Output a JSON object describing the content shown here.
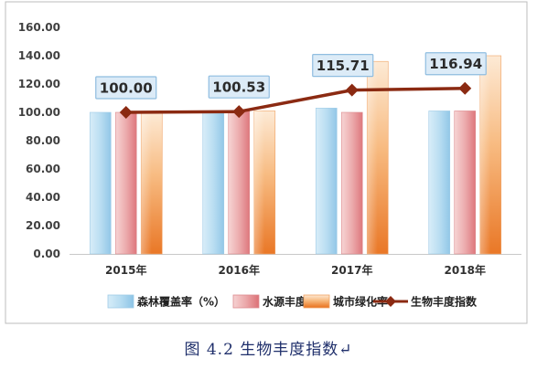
{
  "chart_data": {
    "type": "bar",
    "categories": [
      "2015年",
      "2016年",
      "2017年",
      "2018年"
    ],
    "ylim": [
      0,
      160
    ],
    "yticks": [
      "0.00",
      "20.00",
      "40.00",
      "60.00",
      "80.00",
      "100.00",
      "120.00",
      "140.00",
      "160.00"
    ],
    "grid": false,
    "legend_position": "bottom",
    "series": [
      {
        "name": "森林覆盖率（%）",
        "kind": "bar",
        "values": [
          100,
          100,
          103,
          101
        ],
        "color": "#a9d4ee"
      },
      {
        "name": "水源丰度",
        "kind": "bar",
        "values": [
          100,
          101,
          100,
          101
        ],
        "color": "#e58a8e"
      },
      {
        "name": "城市绿化率",
        "kind": "bar",
        "values": [
          100,
          101,
          136,
          140
        ],
        "color": "#ee7d1f"
      },
      {
        "name": "生物丰度指数",
        "kind": "line",
        "values": [
          100.0,
          100.53,
          115.71,
          116.94
        ],
        "color": "#8b2a12",
        "labels": [
          "100.00",
          "100.53",
          "115.71",
          "116.94"
        ]
      }
    ]
  },
  "caption": "图 4.2  生物丰度指数↵"
}
